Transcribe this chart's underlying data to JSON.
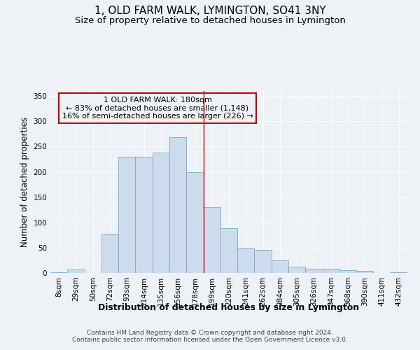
{
  "title": "1, OLD FARM WALK, LYMINGTON, SO41 3NY",
  "subtitle": "Size of property relative to detached houses in Lymington",
  "xlabel": "Distribution of detached houses by size in Lymington",
  "ylabel": "Number of detached properties",
  "bar_color": "#ccdcec",
  "bar_edge_color": "#7aaaca",
  "bar_values": [
    2,
    7,
    0,
    77,
    230,
    230,
    238,
    268,
    200,
    130,
    88,
    50,
    46,
    25,
    12,
    9,
    8,
    5,
    4,
    0,
    2
  ],
  "bin_labels": [
    "8sqm",
    "29sqm",
    "50sqm",
    "72sqm",
    "93sqm",
    "114sqm",
    "135sqm",
    "156sqm",
    "178sqm",
    "199sqm",
    "220sqm",
    "241sqm",
    "262sqm",
    "284sqm",
    "305sqm",
    "326sqm",
    "347sqm",
    "368sqm",
    "390sqm",
    "411sqm",
    "432sqm"
  ],
  "vline_x": 8.5,
  "vline_color": "#cc0000",
  "annotation_text": "1 OLD FARM WALK: 180sqm\n← 83% of detached houses are smaller (1,148)\n16% of semi-detached houses are larger (226) →",
  "ylim": [
    0,
    360
  ],
  "yticks": [
    0,
    50,
    100,
    150,
    200,
    250,
    300,
    350
  ],
  "background_color": "#eef2f7",
  "grid_color": "#ffffff",
  "footer_text": "Contains HM Land Registry data © Crown copyright and database right 2024.\nContains public sector information licensed under the Open Government Licence v3.0.",
  "title_fontsize": 11,
  "subtitle_fontsize": 9.5,
  "xlabel_fontsize": 9,
  "ylabel_fontsize": 8.5,
  "tick_fontsize": 7.5,
  "footer_fontsize": 6.5
}
